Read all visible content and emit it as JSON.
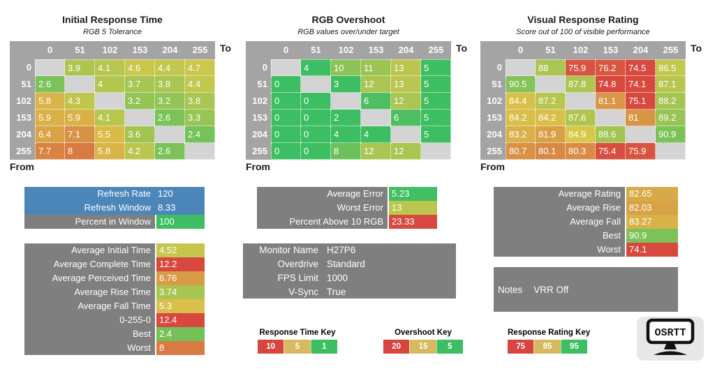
{
  "colors": {
    "heatmap_header_gray": "#A4A4A4",
    "empty_cell_gray": "#D4D4D4",
    "panel_gray": "#7F7F7F",
    "info_blue": "#4C86B9",
    "scale_green": "#3DBE62",
    "scale_yellow": "#D9C84A",
    "scale_red": "#D7483F",
    "key_red": "#D6453F",
    "key_tan": "#D7B961",
    "key_green": "#3DBE62",
    "logo_bg": "#E7E7E7"
  },
  "chart_data": [
    {
      "type": "heatmap",
      "title": "Initial Response Time",
      "subtitle": "RGB 5 Tolerance",
      "x_label": "To",
      "y_label": "From",
      "categories": [
        "0",
        "51",
        "102",
        "153",
        "204",
        "255"
      ],
      "scale": [
        [
          1,
          "#3DBE62"
        ],
        [
          5,
          "#D9C84A"
        ],
        [
          10,
          "#D7483F"
        ]
      ],
      "rows": [
        [
          null,
          "3.9",
          "4.1",
          "4.6",
          "4.4",
          "4.7"
        ],
        [
          "2.6",
          null,
          "4",
          "3.7",
          "3.8",
          "4.4"
        ],
        [
          "5.8",
          "4.3",
          null,
          "3.2",
          "3.2",
          "3.8"
        ],
        [
          "5.9",
          "5.9",
          "4.1",
          null,
          "2.6",
          "3.3"
        ],
        [
          "6.4",
          "7.1",
          "5.5",
          "3.6",
          null,
          "2.4"
        ],
        [
          "7.7",
          "8",
          "5.8",
          "4.2",
          "2.6",
          null
        ]
      ]
    },
    {
      "type": "heatmap",
      "title": "RGB Overshoot",
      "subtitle": "RGB values over/under target",
      "x_label": "To",
      "y_label": "From",
      "categories": [
        "0",
        "51",
        "102",
        "153",
        "204",
        "255"
      ],
      "scale": [
        [
          5,
          "#3DBE62"
        ],
        [
          15,
          "#D9C84A"
        ],
        [
          20,
          "#D7483F"
        ]
      ],
      "rows": [
        [
          null,
          "4",
          "10",
          "11",
          "13",
          "5"
        ],
        [
          "0",
          null,
          "3",
          "12",
          "13",
          "5"
        ],
        [
          "0",
          "0",
          null,
          "6",
          "12",
          "5"
        ],
        [
          "0",
          "0",
          "2",
          null,
          "6",
          "5"
        ],
        [
          "0",
          "0",
          "4",
          "4",
          null,
          "5"
        ],
        [
          "0",
          "0",
          "8",
          "12",
          "12",
          null
        ]
      ]
    },
    {
      "type": "heatmap",
      "title": "Visual Response Rating",
      "subtitle": "Score out of 100 of visible performance",
      "x_label": "To",
      "y_label": "From",
      "categories": [
        "0",
        "51",
        "102",
        "153",
        "204",
        "255"
      ],
      "scale": [
        [
          75,
          "#D7483F"
        ],
        [
          85,
          "#D9C84A"
        ],
        [
          95,
          "#3DBE62"
        ]
      ],
      "rows": [
        [
          null,
          "88",
          "75.9",
          "76.2",
          "74.5",
          "86.5"
        ],
        [
          "90.5",
          null,
          "87.8",
          "74.8",
          "74.1",
          "87.1"
        ],
        [
          "84.4",
          "87.2",
          null,
          "81.1",
          "75.1",
          "88.2"
        ],
        [
          "84.2",
          "84.2",
          "87.6",
          null,
          "81",
          "89.2"
        ],
        [
          "83.2",
          "81.9",
          "84.9",
          "88.6",
          null,
          "90.9"
        ],
        [
          "80.7",
          "80.1",
          "80.3",
          "75.4",
          "75.9",
          null
        ]
      ]
    }
  ],
  "panels": {
    "refresh": {
      "rows": [
        {
          "label": "Refresh Rate",
          "value": "120",
          "label_bg": "#4C86B9",
          "value_bg": "#4C86B9"
        },
        {
          "label": "Refresh Window",
          "value": "8.33",
          "label_bg": "#4C86B9",
          "value_bg": "#4C86B9"
        },
        {
          "label": "Percent in Window",
          "value": "100",
          "label_bg": "#7F7F7F",
          "value_bg": "#3DBE62"
        }
      ]
    },
    "times": {
      "rows": [
        {
          "label": "Average Initial Time",
          "value": "4.52",
          "label_bg": "#7F7F7F",
          "value_bg": "#C6C64D"
        },
        {
          "label": "Average Complete Time",
          "value": "12.2",
          "label_bg": "#7F7F7F",
          "value_bg": "#D7483F"
        },
        {
          "label": "Average Perceived Time",
          "value": "6.76",
          "label_bg": "#7F7F7F",
          "value_bg": "#D89B46"
        },
        {
          "label": "Average Rise Time",
          "value": "3.74",
          "label_bg": "#7F7F7F",
          "value_bg": "#A8C552"
        },
        {
          "label": "Average Fall Time",
          "value": "5.3",
          "label_bg": "#7F7F7F",
          "value_bg": "#D8C04A"
        },
        {
          "label": "0-255-0",
          "value": "12.4",
          "label_bg": "#7F7F7F",
          "value_bg": "#D7483F"
        },
        {
          "label": "Best",
          "value": "2.4",
          "label_bg": "#7F7F7F",
          "value_bg": "#74C15A"
        },
        {
          "label": "Worst",
          "value": "8",
          "label_bg": "#7F7F7F",
          "value_bg": "#D87B43"
        }
      ]
    },
    "error": {
      "rows": [
        {
          "label": "Average Error",
          "value": "5.23",
          "label_bg": "#7F7F7F",
          "value_bg": "#41BF62"
        },
        {
          "label": "Worst Error",
          "value": "13",
          "label_bg": "#7F7F7F",
          "value_bg": "#BAC64F"
        },
        {
          "label": "Percent Above 10 RGB",
          "value": "23.33",
          "label_bg": "#7F7F7F",
          "value_bg": "#D7483F"
        }
      ]
    },
    "rating": {
      "rows": [
        {
          "label": "Average Rating",
          "value": "82.65",
          "label_bg": "#7F7F7F",
          "value_bg": "#D8AA47"
        },
        {
          "label": "Average Rise",
          "value": "82.03",
          "label_bg": "#7F7F7F",
          "value_bg": "#D8A246"
        },
        {
          "label": "Average Fall",
          "value": "83.27",
          "label_bg": "#7F7F7F",
          "value_bg": "#D8B248"
        },
        {
          "label": "Best",
          "value": "90.9",
          "label_bg": "#7F7F7F",
          "value_bg": "#7DC258"
        },
        {
          "label": "Worst",
          "value": "74.1",
          "label_bg": "#7F7F7F",
          "value_bg": "#D7483F"
        }
      ]
    },
    "monitor_info": {
      "rows": [
        {
          "label": "Monitor Name",
          "value": "H27P6"
        },
        {
          "label": "Overdrive",
          "value": "Standard"
        },
        {
          "label": "FPS Limit",
          "value": "1000"
        },
        {
          "label": "V-Sync",
          "value": "True"
        }
      ]
    },
    "notes": {
      "label": "Notes",
      "value": "VRR Off"
    }
  },
  "keys": [
    {
      "title": "Response Time Key",
      "swatches": [
        {
          "label": "10",
          "color": "#D6453F"
        },
        {
          "label": "5",
          "color": "#D7B961"
        },
        {
          "label": "1",
          "color": "#3DBE62"
        }
      ]
    },
    {
      "title": "Overshoot Key",
      "swatches": [
        {
          "label": "20",
          "color": "#D6453F"
        },
        {
          "label": "15",
          "color": "#D7B961"
        },
        {
          "label": "5",
          "color": "#3DBE62"
        }
      ]
    },
    {
      "title": "Response Rating Key",
      "swatches": [
        {
          "label": "75",
          "color": "#D6453F"
        },
        {
          "label": "85",
          "color": "#D7B961"
        },
        {
          "label": "95",
          "color": "#3DBE62"
        }
      ]
    }
  ],
  "logo": {
    "text": "OSRTT"
  }
}
